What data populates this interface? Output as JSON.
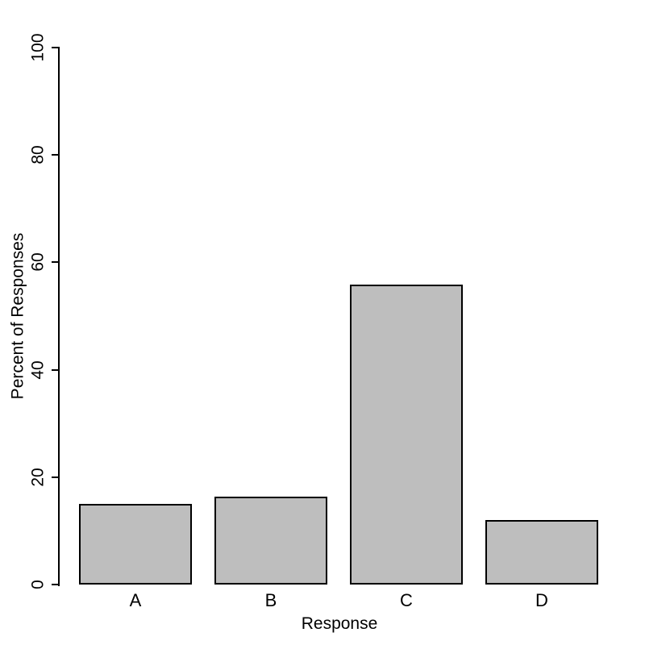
{
  "chart_data": {
    "type": "bar",
    "categories": [
      "A",
      "B",
      "C",
      "D"
    ],
    "values": [
      15,
      16.4,
      55.8,
      12
    ],
    "title": "",
    "xlabel": "Response",
    "ylabel": "Percent of Responses",
    "ylim": [
      0,
      100
    ],
    "yticks": [
      0,
      20,
      40,
      60,
      80,
      100
    ],
    "grid": false,
    "legend": false,
    "bar_fill_color": "#bebebe",
    "bar_border_color": "#000000",
    "axis_color": "#000000",
    "text_color": "#000000",
    "background_color": "#ffffff"
  }
}
